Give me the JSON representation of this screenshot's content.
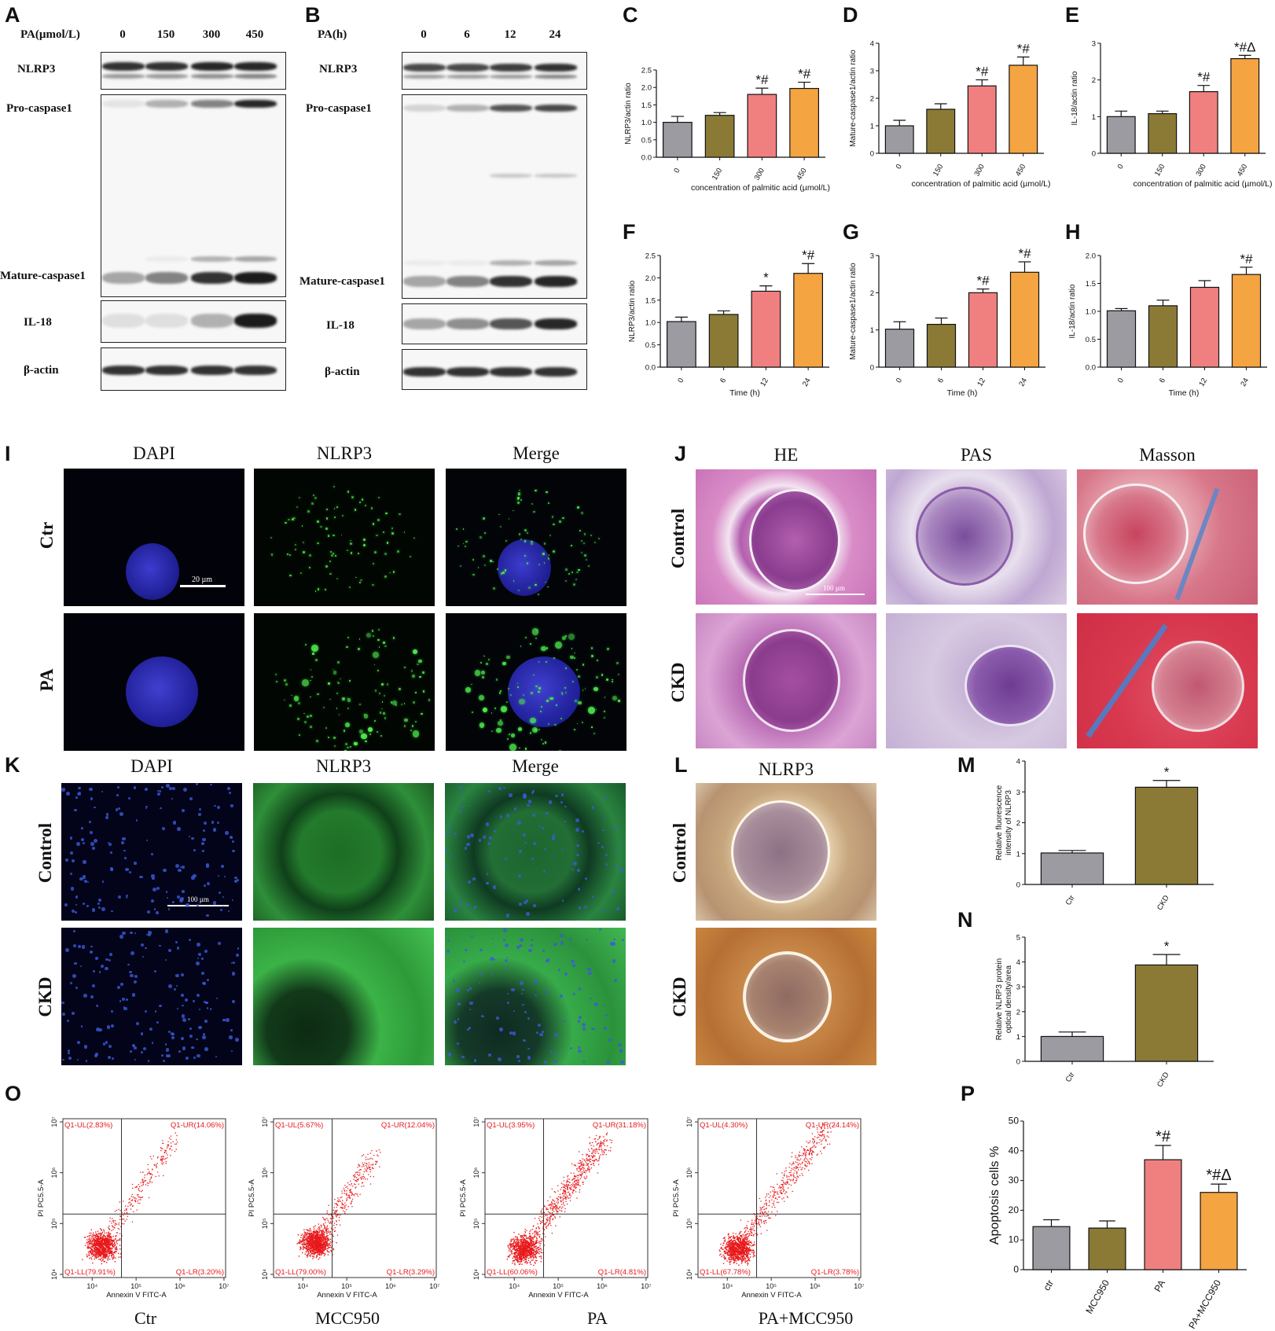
{
  "panels": {
    "A": {
      "label": "A",
      "header": "PA(µmol/L)",
      "lanes": [
        "0",
        "150",
        "300",
        "450"
      ],
      "rows": [
        "NLRP3",
        "Pro-caspase1",
        "Mature-caspase1",
        "IL-18",
        "β-actin"
      ]
    },
    "B": {
      "label": "B",
      "header": "PA(h)",
      "lanes": [
        "0",
        "6",
        "12",
        "24"
      ],
      "rows": [
        "NLRP3",
        "Pro-caspase1",
        "Mature-caspase1",
        "IL-18",
        "β-actin"
      ]
    },
    "I": {
      "label": "I",
      "cols": [
        "DAPI",
        "NLRP3",
        "Merge"
      ],
      "rows": [
        "Ctr",
        "PA"
      ],
      "scale": "20 µm"
    },
    "J": {
      "label": "J",
      "cols": [
        "HE",
        "PAS",
        "Masson"
      ],
      "rows": [
        "Control",
        "CKD"
      ],
      "scale": "100 µm"
    },
    "K": {
      "label": "K",
      "cols": [
        "DAPI",
        "NLRP3",
        "Merge"
      ],
      "rows": [
        "Control",
        "CKD"
      ],
      "scale": "100 µm"
    },
    "L": {
      "label": "L",
      "cols": [
        "NLRP3"
      ],
      "rows": [
        "Control",
        "CKD"
      ]
    },
    "O": {
      "label": "O",
      "titles": [
        "Ctr",
        "MCC950",
        "PA",
        "PA+MCC950"
      ],
      "xlabel": "Annexin V FITC-A",
      "ylabel": "PI PC5.5-A",
      "xticks": [
        "10⁴",
        "10⁵",
        "10⁶",
        "10⁷"
      ],
      "yticks": [
        "10⁴",
        "10⁵",
        "10⁶",
        "10⁷"
      ],
      "quadrants": [
        {
          "UL": "Q1-UL(2.83%)",
          "UR": "Q1-UR(14.06%)",
          "LL": "Q1-LL(79.91%)",
          "LR": "Q1-LR(3.20%)"
        },
        {
          "UL": "Q1-UL(5.67%)",
          "UR": "Q1-UR(12.04%)",
          "LL": "Q1-LL(79.00%)",
          "LR": "Q1-LR(3.29%)"
        },
        {
          "UL": "Q1-UL(3.95%)",
          "UR": "Q1-UR(31.18%)",
          "LL": "Q1-LL(60.06%)",
          "LR": "Q1-LR(4.81%)"
        },
        {
          "UL": "Q1-UL(4.30%)",
          "UR": "Q1-UR(24.14%)",
          "LL": "Q1-LL(67.78%)",
          "LR": "Q1-LR(3.78%)"
        }
      ]
    }
  },
  "colors": {
    "gray": "#9b9ba1",
    "olive": "#8a7a35",
    "pink": "#f08080",
    "orange": "#f5a442"
  },
  "chart_data": [
    {
      "panel": "C",
      "type": "bar",
      "categories": [
        "0",
        "150",
        "300",
        "450"
      ],
      "values": [
        1.0,
        1.2,
        1.8,
        1.97
      ],
      "errors": [
        0.17,
        0.08,
        0.18,
        0.18
      ],
      "ylabel": "NLRP3/actin ratio",
      "xlabel": "concentration of palmitic acid (µmol/L)",
      "ylim": [
        0,
        2.5
      ],
      "yticks": [
        "0.0",
        "0.5",
        "1.0",
        "1.5",
        "2.0",
        "2.5"
      ],
      "annotations": [
        "",
        "",
        "*#",
        "*#"
      ]
    },
    {
      "panel": "D",
      "type": "bar",
      "categories": [
        "0",
        "150",
        "300",
        "450"
      ],
      "values": [
        1.0,
        1.6,
        2.45,
        3.2
      ],
      "errors": [
        0.2,
        0.2,
        0.22,
        0.3
      ],
      "ylabel": "Mature-caspase1/actin ratio",
      "xlabel": "concentration of palmitic acid (µmol/L)",
      "ylim": [
        0,
        4
      ],
      "yticks": [
        "0",
        "1",
        "2",
        "3",
        "4"
      ],
      "annotations": [
        "",
        "",
        "*#",
        "*#"
      ]
    },
    {
      "panel": "E",
      "type": "bar",
      "categories": [
        "0",
        "150",
        "300",
        "450"
      ],
      "values": [
        1.0,
        1.08,
        1.68,
        2.58
      ],
      "errors": [
        0.15,
        0.07,
        0.17,
        0.09
      ],
      "ylabel": "IL-18/actin ratio",
      "xlabel": "concentration of palmitic acid (µmol/L)",
      "ylim": [
        0,
        3
      ],
      "yticks": [
        "0",
        "1",
        "2",
        "3"
      ],
      "annotations": [
        "",
        "",
        "*#",
        "*#Δ"
      ]
    },
    {
      "panel": "F",
      "type": "bar",
      "categories": [
        "0",
        "6",
        "12",
        "24"
      ],
      "values": [
        1.02,
        1.18,
        1.7,
        2.1
      ],
      "errors": [
        0.1,
        0.08,
        0.12,
        0.22
      ],
      "ylabel": "NLRP3/actin ratio",
      "xlabel": "Time (h)",
      "ylim": [
        0,
        2.5
      ],
      "yticks": [
        "0.0",
        "0.5",
        "1.0",
        "1.5",
        "2.0",
        "2.5"
      ],
      "annotations": [
        "",
        "",
        "*",
        "*#"
      ]
    },
    {
      "panel": "G",
      "type": "bar",
      "categories": [
        "0",
        "6",
        "12",
        "24"
      ],
      "values": [
        1.02,
        1.15,
        2.0,
        2.55
      ],
      "errors": [
        0.2,
        0.17,
        0.1,
        0.28
      ],
      "ylabel": "Mature-caspase1/actin ratio",
      "xlabel": "Time (h)",
      "ylim": [
        0,
        3
      ],
      "yticks": [
        "0",
        "1",
        "2",
        "3"
      ],
      "annotations": [
        "",
        "",
        "*#",
        "*#"
      ]
    },
    {
      "panel": "H",
      "type": "bar",
      "categories": [
        "0",
        "6",
        "12",
        "24"
      ],
      "values": [
        1.01,
        1.1,
        1.43,
        1.66
      ],
      "errors": [
        0.04,
        0.1,
        0.12,
        0.13
      ],
      "ylabel": "IL-18/actin ratio",
      "xlabel": "Time (h)",
      "ylim": [
        0,
        2
      ],
      "yticks": [
        "0.0",
        "0.5",
        "1.0",
        "1.5",
        "2.0"
      ],
      "annotations": [
        "",
        "",
        "",
        "*#"
      ]
    },
    {
      "panel": "M",
      "type": "bar",
      "categories": [
        "Ctr",
        "CKD"
      ],
      "values": [
        1.02,
        3.15
      ],
      "errors": [
        0.08,
        0.22
      ],
      "ylabel": "Relative fluorescence intensity of NLRP3",
      "ylim": [
        0,
        4
      ],
      "yticks": [
        "0",
        "1",
        "2",
        "3",
        "4"
      ],
      "annotations": [
        "",
        "*"
      ],
      "colors": [
        "gray",
        "olive"
      ]
    },
    {
      "panel": "N",
      "type": "bar",
      "categories": [
        "Ctr",
        "CKD"
      ],
      "values": [
        1.0,
        3.88
      ],
      "errors": [
        0.18,
        0.42
      ],
      "ylabel": "Relative NLRP3 protein optical density/area",
      "ylim": [
        0,
        5
      ],
      "yticks": [
        "0",
        "1",
        "2",
        "3",
        "4",
        "5"
      ],
      "annotations": [
        "",
        "*"
      ],
      "colors": [
        "gray",
        "olive"
      ]
    },
    {
      "panel": "P",
      "type": "bar",
      "categories": [
        "ctr",
        "MCC950",
        "PA",
        "PA+MCC950"
      ],
      "values": [
        14.5,
        14,
        37,
        26
      ],
      "errors": [
        2.3,
        2.4,
        4.8,
        2.8
      ],
      "ylabel": "Apoptosis cells %",
      "ylim": [
        0,
        50
      ],
      "yticks": [
        "0",
        "10",
        "20",
        "30",
        "40",
        "50"
      ],
      "annotations": [
        "",
        "",
        "*#",
        "*#Δ"
      ]
    }
  ]
}
